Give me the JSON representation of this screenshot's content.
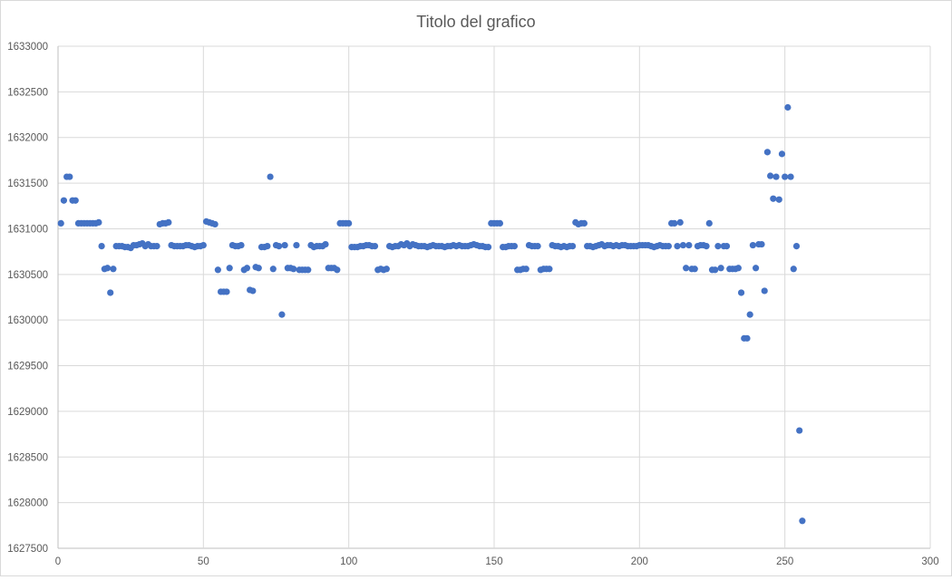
{
  "chart_data": {
    "type": "scatter",
    "title": "Titolo del grafico",
    "xlabel": "",
    "ylabel": "",
    "xlim": [
      0,
      300
    ],
    "ylim": [
      1627500,
      1633000
    ],
    "x_ticks": [
      0,
      50,
      100,
      150,
      200,
      250,
      300
    ],
    "y_ticks": [
      1627500,
      1628000,
      1628500,
      1629000,
      1629500,
      1630000,
      1630500,
      1631000,
      1631500,
      1632000,
      1632500,
      1633000
    ],
    "grid": true,
    "legend": "none",
    "marker_color": "#4472C4",
    "points": [
      [
        1,
        1631060
      ],
      [
        2,
        1631310
      ],
      [
        3,
        1631570
      ],
      [
        4,
        1631570
      ],
      [
        5,
        1631310
      ],
      [
        6,
        1631310
      ],
      [
        7,
        1631060
      ],
      [
        8,
        1631060
      ],
      [
        9,
        1631060
      ],
      [
        10,
        1631060
      ],
      [
        11,
        1631060
      ],
      [
        12,
        1631060
      ],
      [
        13,
        1631060
      ],
      [
        14,
        1631070
      ],
      [
        15,
        1630810
      ],
      [
        16,
        1630560
      ],
      [
        17,
        1630570
      ],
      [
        18,
        1630300
      ],
      [
        19,
        1630560
      ],
      [
        20,
        1630810
      ],
      [
        21,
        1630810
      ],
      [
        22,
        1630810
      ],
      [
        23,
        1630800
      ],
      [
        24,
        1630800
      ],
      [
        25,
        1630790
      ],
      [
        26,
        1630820
      ],
      [
        27,
        1630820
      ],
      [
        28,
        1630830
      ],
      [
        29,
        1630840
      ],
      [
        30,
        1630810
      ],
      [
        31,
        1630830
      ],
      [
        32,
        1630810
      ],
      [
        33,
        1630810
      ],
      [
        34,
        1630810
      ],
      [
        35,
        1631050
      ],
      [
        36,
        1631060
      ],
      [
        37,
        1631060
      ],
      [
        38,
        1631070
      ],
      [
        39,
        1630820
      ],
      [
        40,
        1630810
      ],
      [
        41,
        1630810
      ],
      [
        42,
        1630810
      ],
      [
        43,
        1630810
      ],
      [
        44,
        1630820
      ],
      [
        45,
        1630820
      ],
      [
        46,
        1630810
      ],
      [
        47,
        1630800
      ],
      [
        48,
        1630810
      ],
      [
        49,
        1630810
      ],
      [
        50,
        1630820
      ],
      [
        51,
        1631080
      ],
      [
        52,
        1631070
      ],
      [
        53,
        1631060
      ],
      [
        54,
        1631050
      ],
      [
        55,
        1630550
      ],
      [
        56,
        1630310
      ],
      [
        57,
        1630310
      ],
      [
        58,
        1630310
      ],
      [
        59,
        1630570
      ],
      [
        60,
        1630820
      ],
      [
        61,
        1630810
      ],
      [
        62,
        1630810
      ],
      [
        63,
        1630820
      ],
      [
        64,
        1630550
      ],
      [
        65,
        1630570
      ],
      [
        66,
        1630330
      ],
      [
        67,
        1630320
      ],
      [
        68,
        1630580
      ],
      [
        69,
        1630570
      ],
      [
        70,
        1630800
      ],
      [
        71,
        1630800
      ],
      [
        72,
        1630810
      ],
      [
        73,
        1631570
      ],
      [
        74,
        1630560
      ],
      [
        75,
        1630820
      ],
      [
        76,
        1630810
      ],
      [
        77,
        1630060
      ],
      [
        78,
        1630820
      ],
      [
        79,
        1630570
      ],
      [
        80,
        1630570
      ],
      [
        81,
        1630560
      ],
      [
        82,
        1630820
      ],
      [
        83,
        1630550
      ],
      [
        84,
        1630550
      ],
      [
        85,
        1630550
      ],
      [
        86,
        1630550
      ],
      [
        87,
        1630820
      ],
      [
        88,
        1630800
      ],
      [
        89,
        1630810
      ],
      [
        90,
        1630810
      ],
      [
        91,
        1630810
      ],
      [
        92,
        1630830
      ],
      [
        93,
        1630570
      ],
      [
        94,
        1630570
      ],
      [
        95,
        1630570
      ],
      [
        96,
        1630550
      ],
      [
        97,
        1631060
      ],
      [
        98,
        1631060
      ],
      [
        99,
        1631060
      ],
      [
        100,
        1631060
      ],
      [
        101,
        1630800
      ],
      [
        102,
        1630800
      ],
      [
        103,
        1630800
      ],
      [
        104,
        1630810
      ],
      [
        105,
        1630810
      ],
      [
        106,
        1630820
      ],
      [
        107,
        1630820
      ],
      [
        108,
        1630810
      ],
      [
        109,
        1630810
      ],
      [
        110,
        1630550
      ],
      [
        111,
        1630560
      ],
      [
        112,
        1630550
      ],
      [
        113,
        1630560
      ],
      [
        114,
        1630810
      ],
      [
        115,
        1630800
      ],
      [
        116,
        1630810
      ],
      [
        117,
        1630810
      ],
      [
        118,
        1630830
      ],
      [
        119,
        1630820
      ],
      [
        120,
        1630840
      ],
      [
        121,
        1630810
      ],
      [
        122,
        1630830
      ],
      [
        123,
        1630820
      ],
      [
        124,
        1630810
      ],
      [
        125,
        1630810
      ],
      [
        126,
        1630810
      ],
      [
        127,
        1630800
      ],
      [
        128,
        1630810
      ],
      [
        129,
        1630820
      ],
      [
        130,
        1630810
      ],
      [
        131,
        1630810
      ],
      [
        132,
        1630810
      ],
      [
        133,
        1630800
      ],
      [
        134,
        1630810
      ],
      [
        135,
        1630810
      ],
      [
        136,
        1630820
      ],
      [
        137,
        1630810
      ],
      [
        138,
        1630820
      ],
      [
        139,
        1630810
      ],
      [
        140,
        1630810
      ],
      [
        141,
        1630810
      ],
      [
        142,
        1630820
      ],
      [
        143,
        1630830
      ],
      [
        144,
        1630820
      ],
      [
        145,
        1630810
      ],
      [
        146,
        1630810
      ],
      [
        147,
        1630800
      ],
      [
        148,
        1630800
      ],
      [
        149,
        1631060
      ],
      [
        150,
        1631060
      ],
      [
        151,
        1631060
      ],
      [
        152,
        1631060
      ],
      [
        153,
        1630800
      ],
      [
        154,
        1630800
      ],
      [
        155,
        1630810
      ],
      [
        156,
        1630810
      ],
      [
        157,
        1630810
      ],
      [
        158,
        1630550
      ],
      [
        159,
        1630550
      ],
      [
        160,
        1630560
      ],
      [
        161,
        1630560
      ],
      [
        162,
        1630820
      ],
      [
        163,
        1630810
      ],
      [
        164,
        1630810
      ],
      [
        165,
        1630810
      ],
      [
        166,
        1630550
      ],
      [
        167,
        1630560
      ],
      [
        168,
        1630560
      ],
      [
        169,
        1630560
      ],
      [
        170,
        1630820
      ],
      [
        171,
        1630810
      ],
      [
        172,
        1630810
      ],
      [
        173,
        1630800
      ],
      [
        174,
        1630810
      ],
      [
        175,
        1630800
      ],
      [
        176,
        1630810
      ],
      [
        177,
        1630810
      ],
      [
        178,
        1631070
      ],
      [
        179,
        1631050
      ],
      [
        180,
        1631060
      ],
      [
        181,
        1631060
      ],
      [
        182,
        1630810
      ],
      [
        183,
        1630810
      ],
      [
        184,
        1630800
      ],
      [
        185,
        1630810
      ],
      [
        186,
        1630820
      ],
      [
        187,
        1630830
      ],
      [
        188,
        1630810
      ],
      [
        189,
        1630820
      ],
      [
        190,
        1630820
      ],
      [
        191,
        1630810
      ],
      [
        192,
        1630820
      ],
      [
        193,
        1630810
      ],
      [
        194,
        1630820
      ],
      [
        195,
        1630820
      ],
      [
        196,
        1630810
      ],
      [
        197,
        1630810
      ],
      [
        198,
        1630810
      ],
      [
        199,
        1630810
      ],
      [
        200,
        1630820
      ],
      [
        201,
        1630820
      ],
      [
        202,
        1630820
      ],
      [
        203,
        1630820
      ],
      [
        204,
        1630810
      ],
      [
        205,
        1630800
      ],
      [
        206,
        1630810
      ],
      [
        207,
        1630820
      ],
      [
        208,
        1630810
      ],
      [
        209,
        1630810
      ],
      [
        210,
        1630810
      ],
      [
        211,
        1631060
      ],
      [
        212,
        1631060
      ],
      [
        213,
        1630810
      ],
      [
        214,
        1631070
      ],
      [
        215,
        1630820
      ],
      [
        216,
        1630570
      ],
      [
        217,
        1630820
      ],
      [
        218,
        1630560
      ],
      [
        219,
        1630560
      ],
      [
        220,
        1630810
      ],
      [
        221,
        1630820
      ],
      [
        222,
        1630820
      ],
      [
        223,
        1630810
      ],
      [
        224,
        1631060
      ],
      [
        225,
        1630550
      ],
      [
        226,
        1630550
      ],
      [
        227,
        1630810
      ],
      [
        228,
        1630570
      ],
      [
        229,
        1630810
      ],
      [
        230,
        1630810
      ],
      [
        231,
        1630560
      ],
      [
        232,
        1630560
      ],
      [
        233,
        1630560
      ],
      [
        234,
        1630570
      ],
      [
        235,
        1630300
      ],
      [
        236,
        1629800
      ],
      [
        237,
        1629800
      ],
      [
        238,
        1630060
      ],
      [
        239,
        1630820
      ],
      [
        240,
        1630570
      ],
      [
        241,
        1630830
      ],
      [
        242,
        1630830
      ],
      [
        243,
        1630320
      ],
      [
        244,
        1631840
      ],
      [
        245,
        1631580
      ],
      [
        246,
        1631330
      ],
      [
        247,
        1631570
      ],
      [
        248,
        1631320
      ],
      [
        249,
        1631820
      ],
      [
        250,
        1631570
      ],
      [
        251,
        1632330
      ],
      [
        252,
        1631570
      ],
      [
        253,
        1630560
      ],
      [
        254,
        1630810
      ],
      [
        255,
        1628790
      ],
      [
        256,
        1627800
      ]
    ]
  }
}
